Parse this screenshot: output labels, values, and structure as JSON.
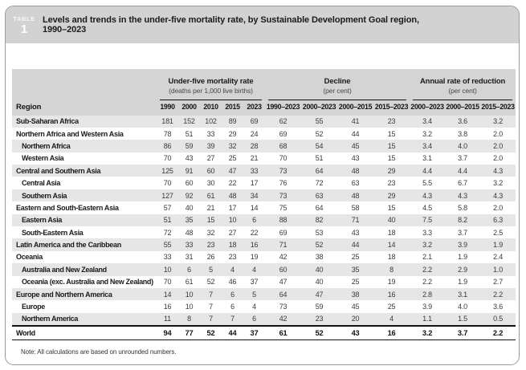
{
  "header": {
    "eyebrow": "TABLE",
    "number": "1",
    "title_line1": "Levels and trends in the under-five mortality rate, by Sustainable Development Goal region,",
    "title_line2": "1990–2023"
  },
  "columns": {
    "region_header": "Region",
    "groups": [
      {
        "title": "Under-five mortality rate",
        "subtitle": "(deaths per 1,000 live births)",
        "cols": [
          "1990",
          "2000",
          "2010",
          "2015",
          "2023"
        ]
      },
      {
        "title": "Decline",
        "subtitle": "(per cent)",
        "cols": [
          "1990–2023",
          "2000–2023",
          "2000–2015",
          "2015–2023"
        ]
      },
      {
        "title": "Annual rate of reduction",
        "subtitle": "(per cent)",
        "cols": [
          "2000–2023",
          "2000–2015",
          "2015–2023"
        ]
      }
    ]
  },
  "rows": [
    {
      "region": "Sub-Saharan Africa",
      "level": 0,
      "values": [
        "181",
        "152",
        "102",
        "89",
        "69",
        "62",
        "55",
        "41",
        "23",
        "3.4",
        "3.6",
        "3.2"
      ]
    },
    {
      "region": "Northern Africa and Western Asia",
      "level": 0,
      "values": [
        "78",
        "51",
        "33",
        "29",
        "24",
        "69",
        "52",
        "44",
        "15",
        "3.2",
        "3.8",
        "2.0"
      ]
    },
    {
      "region": "Northern Africa",
      "level": 1,
      "values": [
        "86",
        "59",
        "39",
        "32",
        "28",
        "68",
        "54",
        "45",
        "15",
        "3.4",
        "4.0",
        "2.0"
      ]
    },
    {
      "region": "Western Asia",
      "level": 1,
      "values": [
        "70",
        "43",
        "27",
        "25",
        "21",
        "70",
        "51",
        "43",
        "15",
        "3.1",
        "3.7",
        "2.0"
      ]
    },
    {
      "region": "Central and Southern Asia",
      "level": 0,
      "values": [
        "125",
        "91",
        "60",
        "47",
        "33",
        "73",
        "64",
        "48",
        "29",
        "4.4",
        "4.4",
        "4.3"
      ]
    },
    {
      "region": "Central Asia",
      "level": 1,
      "values": [
        "70",
        "60",
        "30",
        "22",
        "17",
        "76",
        "72",
        "63",
        "23",
        "5.5",
        "6.7",
        "3.2"
      ]
    },
    {
      "region": "Southern Asia",
      "level": 1,
      "values": [
        "127",
        "92",
        "61",
        "48",
        "34",
        "73",
        "63",
        "48",
        "29",
        "4.3",
        "4.3",
        "4.3"
      ]
    },
    {
      "region": "Eastern and South-Eastern Asia",
      "level": 0,
      "values": [
        "57",
        "40",
        "21",
        "17",
        "14",
        "75",
        "64",
        "58",
        "15",
        "4.5",
        "5.8",
        "2.0"
      ]
    },
    {
      "region": "Eastern Asia",
      "level": 1,
      "values": [
        "51",
        "35",
        "15",
        "10",
        "6",
        "88",
        "82",
        "71",
        "40",
        "7.5",
        "8.2",
        "6.3"
      ]
    },
    {
      "region": "South-Eastern Asia",
      "level": 1,
      "values": [
        "72",
        "48",
        "32",
        "27",
        "22",
        "69",
        "53",
        "43",
        "18",
        "3.3",
        "3.7",
        "2.5"
      ]
    },
    {
      "region": "Latin America and the Caribbean",
      "level": 0,
      "values": [
        "55",
        "33",
        "23",
        "18",
        "16",
        "71",
        "52",
        "44",
        "14",
        "3.2",
        "3.9",
        "1.9"
      ]
    },
    {
      "region": "Oceania",
      "level": 0,
      "values": [
        "33",
        "31",
        "26",
        "23",
        "19",
        "42",
        "38",
        "25",
        "18",
        "2.1",
        "1.9",
        "2.4"
      ]
    },
    {
      "region": "Australia and New Zealand",
      "level": 1,
      "values": [
        "10",
        "6",
        "5",
        "4",
        "4",
        "60",
        "40",
        "35",
        "8",
        "2.2",
        "2.9",
        "1.0"
      ]
    },
    {
      "region": "Oceania (exc. Australia and New Zealand)",
      "level": 1,
      "values": [
        "70",
        "61",
        "52",
        "46",
        "37",
        "47",
        "40",
        "25",
        "19",
        "2.2",
        "1.9",
        "2.7"
      ]
    },
    {
      "region": "Europe and Northern America",
      "level": 0,
      "values": [
        "14",
        "10",
        "7",
        "6",
        "5",
        "64",
        "47",
        "38",
        "16",
        "2.8",
        "3.1",
        "2.2"
      ]
    },
    {
      "region": "Europe",
      "level": 1,
      "values": [
        "16",
        "10",
        "7",
        "6",
        "4",
        "73",
        "59",
        "45",
        "25",
        "3.9",
        "4.0",
        "3.6"
      ]
    },
    {
      "region": "Northern America",
      "level": 1,
      "values": [
        "11",
        "8",
        "7",
        "7",
        "6",
        "42",
        "23",
        "20",
        "4",
        "1.1",
        "1.5",
        "0.5"
      ]
    },
    {
      "region": "World",
      "level": 0,
      "emphasis": true,
      "values": [
        "94",
        "77",
        "52",
        "44",
        "37",
        "61",
        "52",
        "43",
        "16",
        "3.2",
        "3.7",
        "2.2"
      ]
    }
  ],
  "note": "Note: All calculations are based on unrounded numbers.",
  "colors": {
    "band_gray": "#d2d2d2",
    "header_gray": "#d4d4d4",
    "zebra_gray": "#e6e6e6",
    "rule_black": "#141414"
  }
}
